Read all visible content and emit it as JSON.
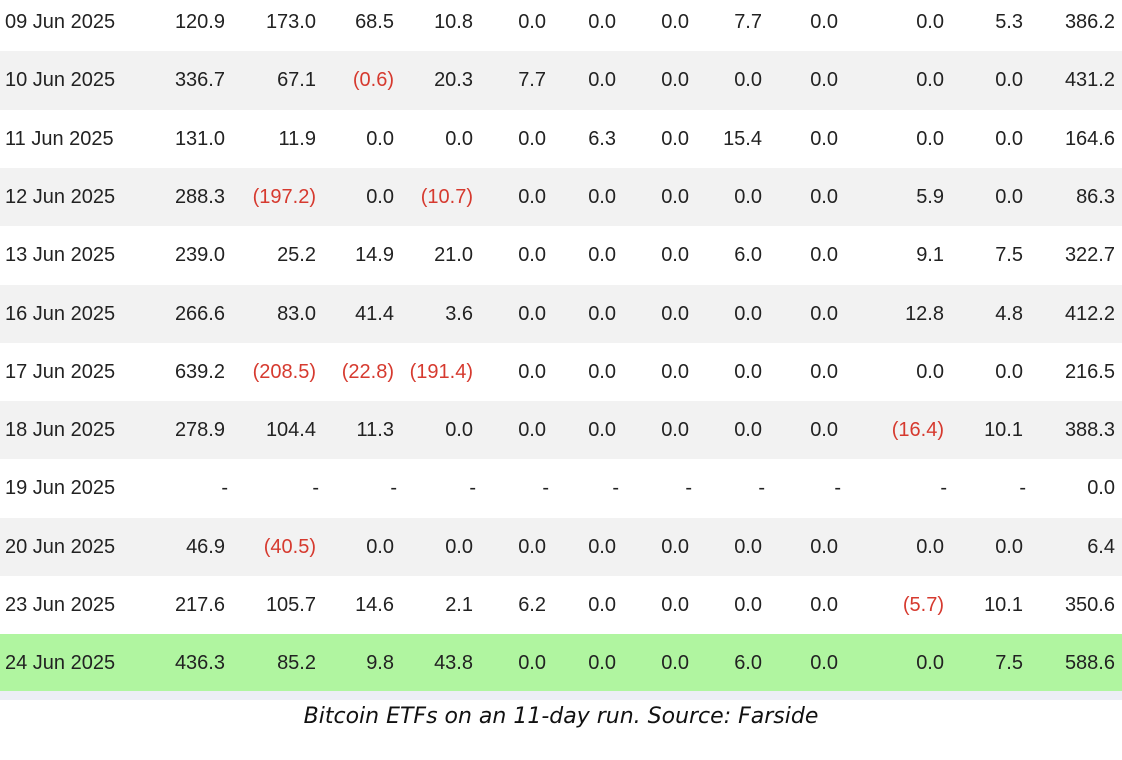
{
  "table": {
    "rows": [
      [
        "09 Jun 2025",
        "120.9",
        "173.0",
        "68.5",
        "10.8",
        "0.0",
        "0.0",
        "0.0",
        "7.7",
        "0.0",
        "0.0",
        "5.3",
        "386.2"
      ],
      [
        "10 Jun 2025",
        "336.7",
        "67.1",
        "(0.6)",
        "20.3",
        "7.7",
        "0.0",
        "0.0",
        "0.0",
        "0.0",
        "0.0",
        "0.0",
        "431.2"
      ],
      [
        "11 Jun 2025",
        "131.0",
        "11.9",
        "0.0",
        "0.0",
        "0.0",
        "6.3",
        "0.0",
        "15.4",
        "0.0",
        "0.0",
        "0.0",
        "164.6"
      ],
      [
        "12 Jun 2025",
        "288.3",
        "(197.2)",
        "0.0",
        "(10.7)",
        "0.0",
        "0.0",
        "0.0",
        "0.0",
        "0.0",
        "5.9",
        "0.0",
        "86.3"
      ],
      [
        "13 Jun 2025",
        "239.0",
        "25.2",
        "14.9",
        "21.0",
        "0.0",
        "0.0",
        "0.0",
        "6.0",
        "0.0",
        "9.1",
        "7.5",
        "322.7"
      ],
      [
        "16 Jun 2025",
        "266.6",
        "83.0",
        "41.4",
        "3.6",
        "0.0",
        "0.0",
        "0.0",
        "0.0",
        "0.0",
        "12.8",
        "4.8",
        "412.2"
      ],
      [
        "17 Jun 2025",
        "639.2",
        "(208.5)",
        "(22.8)",
        "(191.4)",
        "0.0",
        "0.0",
        "0.0",
        "0.0",
        "0.0",
        "0.0",
        "0.0",
        "216.5"
      ],
      [
        "18 Jun 2025",
        "278.9",
        "104.4",
        "11.3",
        "0.0",
        "0.0",
        "0.0",
        "0.0",
        "0.0",
        "0.0",
        "(16.4)",
        "10.1",
        "388.3"
      ],
      [
        "19 Jun 2025",
        "-",
        "-",
        "-",
        "-",
        "-",
        "-",
        "-",
        "-",
        "-",
        "-",
        "-",
        "0.0"
      ],
      [
        "20 Jun 2025",
        "46.9",
        "(40.5)",
        "0.0",
        "0.0",
        "0.0",
        "0.0",
        "0.0",
        "0.0",
        "0.0",
        "0.0",
        "0.0",
        "6.4"
      ],
      [
        "23 Jun 2025",
        "217.6",
        "105.7",
        "14.6",
        "2.1",
        "6.2",
        "0.0",
        "0.0",
        "0.0",
        "0.0",
        "(5.7)",
        "10.1",
        "350.6"
      ],
      [
        "24 Jun 2025",
        "436.3",
        "85.2",
        "9.8",
        "43.8",
        "0.0",
        "0.0",
        "0.0",
        "6.0",
        "0.0",
        "0.0",
        "7.5",
        "588.6"
      ]
    ]
  },
  "caption": "Bitcoin ETFs on an 11-day run. Source: Farside"
}
